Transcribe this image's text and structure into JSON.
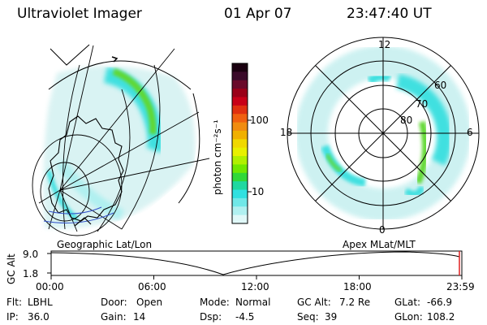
{
  "header": {
    "instrument": "Ultraviolet Imager",
    "date": "01 Apr 07",
    "time": "23:47:40 UT"
  },
  "colorbar": {
    "label": "photon cm⁻²s⁻¹",
    "ticks": [
      "100",
      "10"
    ],
    "colors": [
      "#1a0010",
      "#3a0a2a",
      "#6a0a2a",
      "#9a0018",
      "#c80018",
      "#e03010",
      "#f06010",
      "#f08c10",
      "#f0b000",
      "#f0d800",
      "#e8f000",
      "#b0f000",
      "#70e800",
      "#30d838",
      "#20d8a0",
      "#30e0e0",
      "#70e8e8",
      "#b0f0f0",
      "#e0f8f8"
    ]
  },
  "geo_map": {
    "label": "Geographic Lat/Lon"
  },
  "polar_plot": {
    "label": "Apex MLat/MLT",
    "mlt_labels": {
      "top": "12",
      "left": "18",
      "right": "6",
      "bottom": "0"
    },
    "lat_labels": [
      "60",
      "70",
      "80"
    ]
  },
  "altitude_plot": {
    "ylabel": "GC Alt",
    "y_ticks": [
      "9.0",
      "1.8"
    ],
    "x_ticks": [
      "00:00",
      "06:00",
      "12:00",
      "18:00",
      "23:59"
    ]
  },
  "status": {
    "flt_label": "Flt:",
    "flt_value": "LBHL",
    "ip_label": "IP:",
    "ip_value": "36.0",
    "door_label": "Door:",
    "door_value": "Open",
    "gain_label": "Gain:",
    "gain_value": "14",
    "mode_label": "Mode:",
    "mode_value": "Normal",
    "dsp_label": "Dsp:",
    "dsp_value": "-4.5",
    "gcalt_label": "GC Alt:",
    "gcalt_value": "7.2 Re",
    "seq_label": "Seq:",
    "seq_value": "39",
    "glat_label": "GLat:",
    "glat_value": "-66.9",
    "glon_label": "GLon:",
    "glon_value": "108.2"
  }
}
